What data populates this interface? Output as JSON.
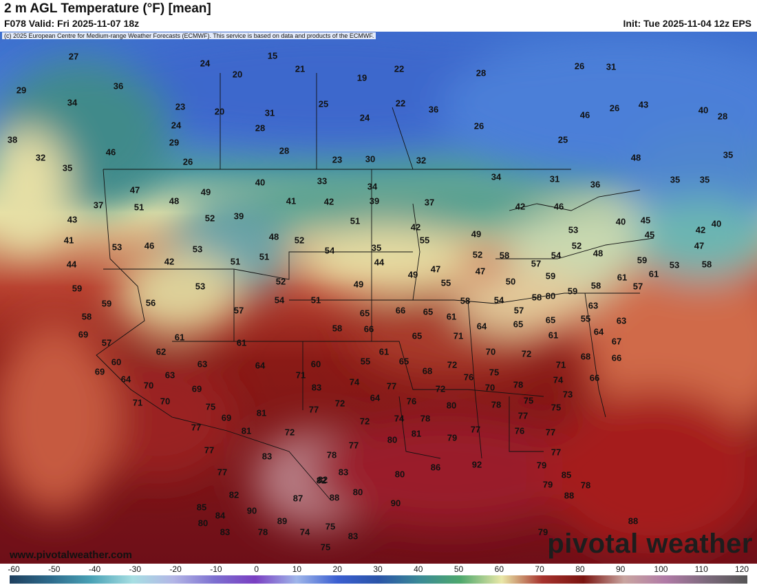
{
  "header": {
    "title": "2 m AGL Temperature (°F) [mean]",
    "valid": "F078 Valid: Fri 2025-11-07 18z",
    "init": "Init: Tue 2025-11-04 12z EPS"
  },
  "copyright": "(c) 2025 European Centre for Medium-range Weather Forecasts (ECMWF). This service is based on data and products of the ECMWF.",
  "website": "www.pivotalweather.com",
  "brand": "pivotal weather",
  "colorbar": {
    "ticks": [
      "-60",
      "-50",
      "-40",
      "-30",
      "-20",
      "-10",
      "0",
      "10",
      "20",
      "30",
      "40",
      "50",
      "60",
      "70",
      "80",
      "90",
      "100",
      "110",
      "120"
    ],
    "colors": [
      "#1f3f5e",
      "#2d6b8c",
      "#4aa2b6",
      "#a7dfe3",
      "#b3b6e6",
      "#7c6fd0",
      "#7a3fc2",
      "#9fb6ea",
      "#3b5fd1",
      "#2a54a8",
      "#3a8a96",
      "#4ea86d",
      "#eae8a8",
      "#a6322d",
      "#7a1410",
      "#c9a5a0",
      "#b07aa6",
      "#7d6a7d",
      "#555555"
    ]
  },
  "values": [
    "27",
    "15",
    "24",
    "21",
    "20",
    "19",
    "22",
    "28",
    "26",
    "31",
    "36",
    "34",
    "29",
    "23",
    "20",
    "31",
    "24",
    "25",
    "24",
    "22",
    "36",
    "26",
    "46",
    "43",
    "38",
    "46",
    "29",
    "26",
    "28",
    "28",
    "23",
    "30",
    "32",
    "28",
    "25",
    "26",
    "48",
    "40",
    "32",
    "35",
    "35",
    "31",
    "36",
    "35",
    "40",
    "47",
    "49",
    "40",
    "33",
    "34",
    "34",
    "35",
    "37",
    "51",
    "48",
    "41",
    "42",
    "39",
    "37",
    "42",
    "46",
    "43",
    "52",
    "39",
    "51",
    "42",
    "45",
    "40",
    "42",
    "41",
    "53",
    "46",
    "53",
    "48",
    "52",
    "54",
    "55",
    "49",
    "53",
    "45",
    "47",
    "44",
    "42",
    "51",
    "51",
    "35",
    "44",
    "52",
    "58",
    "57",
    "54",
    "52",
    "48",
    "47",
    "47",
    "59",
    "53",
    "61",
    "61",
    "59",
    "59",
    "59",
    "56",
    "53",
    "52",
    "49",
    "49",
    "55",
    "50",
    "58",
    "58",
    "59",
    "57",
    "54",
    "51",
    "58",
    "54",
    "58",
    "57",
    "57",
    "63",
    "58",
    "66",
    "65",
    "65",
    "58",
    "55",
    "61",
    "66",
    "64",
    "65",
    "65",
    "63",
    "69",
    "57",
    "61",
    "61",
    "71",
    "64",
    "65",
    "67",
    "61",
    "66",
    "60",
    "62",
    "63",
    "64",
    "60",
    "55",
    "61",
    "65",
    "68",
    "72",
    "70",
    "72",
    "71",
    "68",
    "66",
    "69",
    "64",
    "70",
    "63",
    "69",
    "71",
    "83",
    "74",
    "77",
    "64",
    "72",
    "76",
    "75",
    "78",
    "74",
    "70",
    "71",
    "70",
    "75",
    "69",
    "81",
    "77",
    "72",
    "72",
    "74",
    "76",
    "78",
    "80",
    "78",
    "75",
    "77",
    "73",
    "75",
    "77",
    "81",
    "72",
    "77",
    "80",
    "81",
    "79",
    "77",
    "76",
    "77",
    "77",
    "83",
    "78",
    "83",
    "87",
    "82",
    "80",
    "86",
    "92",
    "79",
    "77",
    "77",
    "82",
    "79",
    "85",
    "80",
    "88",
    "78",
    "90",
    "82",
    "90",
    "88",
    "85",
    "84",
    "89",
    "74",
    "75",
    "83",
    "78",
    "79",
    "88",
    "83",
    "75",
    "80",
    "80"
  ]
}
